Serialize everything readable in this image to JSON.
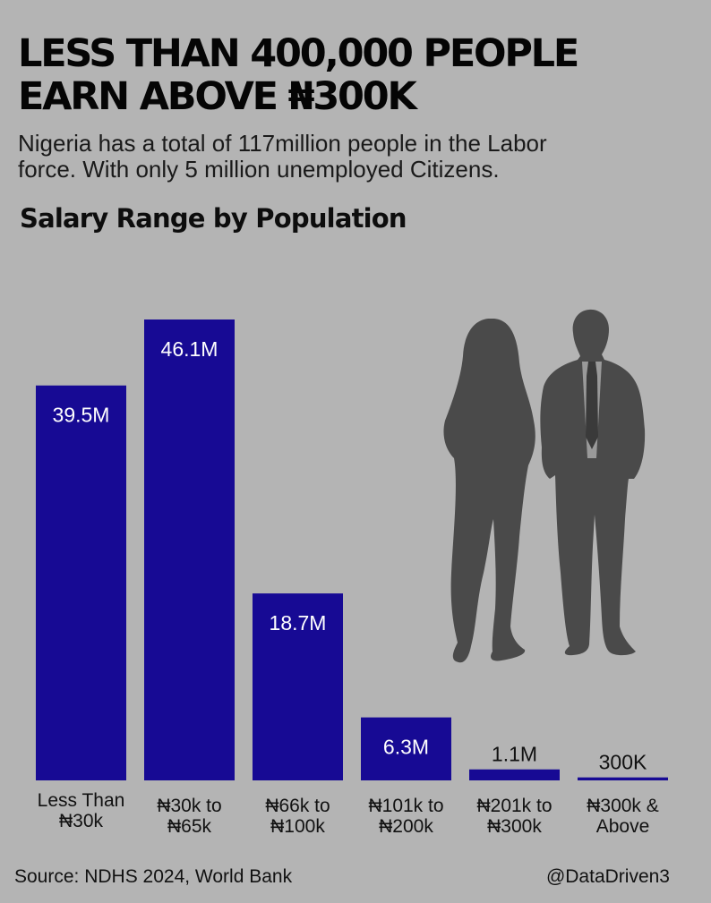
{
  "header": {
    "title_line1": "LESS THAN 400,000 PEOPLE",
    "title_line2": "EARN ABOVE ₦300K",
    "subtitle_line1": "Nigeria has a total of 117million people in the Labor",
    "subtitle_line2": "force. With only 5 million unemployed Citizens."
  },
  "chart_data": {
    "type": "bar",
    "title": "Salary Range by Population",
    "categories": [
      [
        "Less Than",
        "₦30k"
      ],
      [
        "₦30k to",
        "₦65k"
      ],
      [
        "₦66k to",
        "₦100k"
      ],
      [
        "₦101k to",
        "₦200k"
      ],
      [
        "₦201k to",
        "₦300k"
      ],
      [
        "₦300k &",
        "Above"
      ]
    ],
    "values": [
      39.5,
      46.1,
      18.7,
      6.3,
      1.1,
      0.3
    ],
    "value_labels": [
      "39.5M",
      "46.1M",
      "18.7M",
      "6.3M",
      "1.1M",
      "300K"
    ],
    "unit": "million people",
    "ylim": [
      0,
      46.1
    ],
    "grid": false,
    "legend": "none"
  },
  "colors": {
    "background": "#b4b4b4",
    "bar": "#170a94",
    "label_inside": "#ffffff",
    "label_outside": "#111111",
    "silhouette": "#4a4a4a"
  },
  "footer": {
    "source": "Source: NDHS 2024, World Bank",
    "handle": "@DataDriven3"
  },
  "decorations": {
    "illustration": "people-silhouette-icon"
  }
}
